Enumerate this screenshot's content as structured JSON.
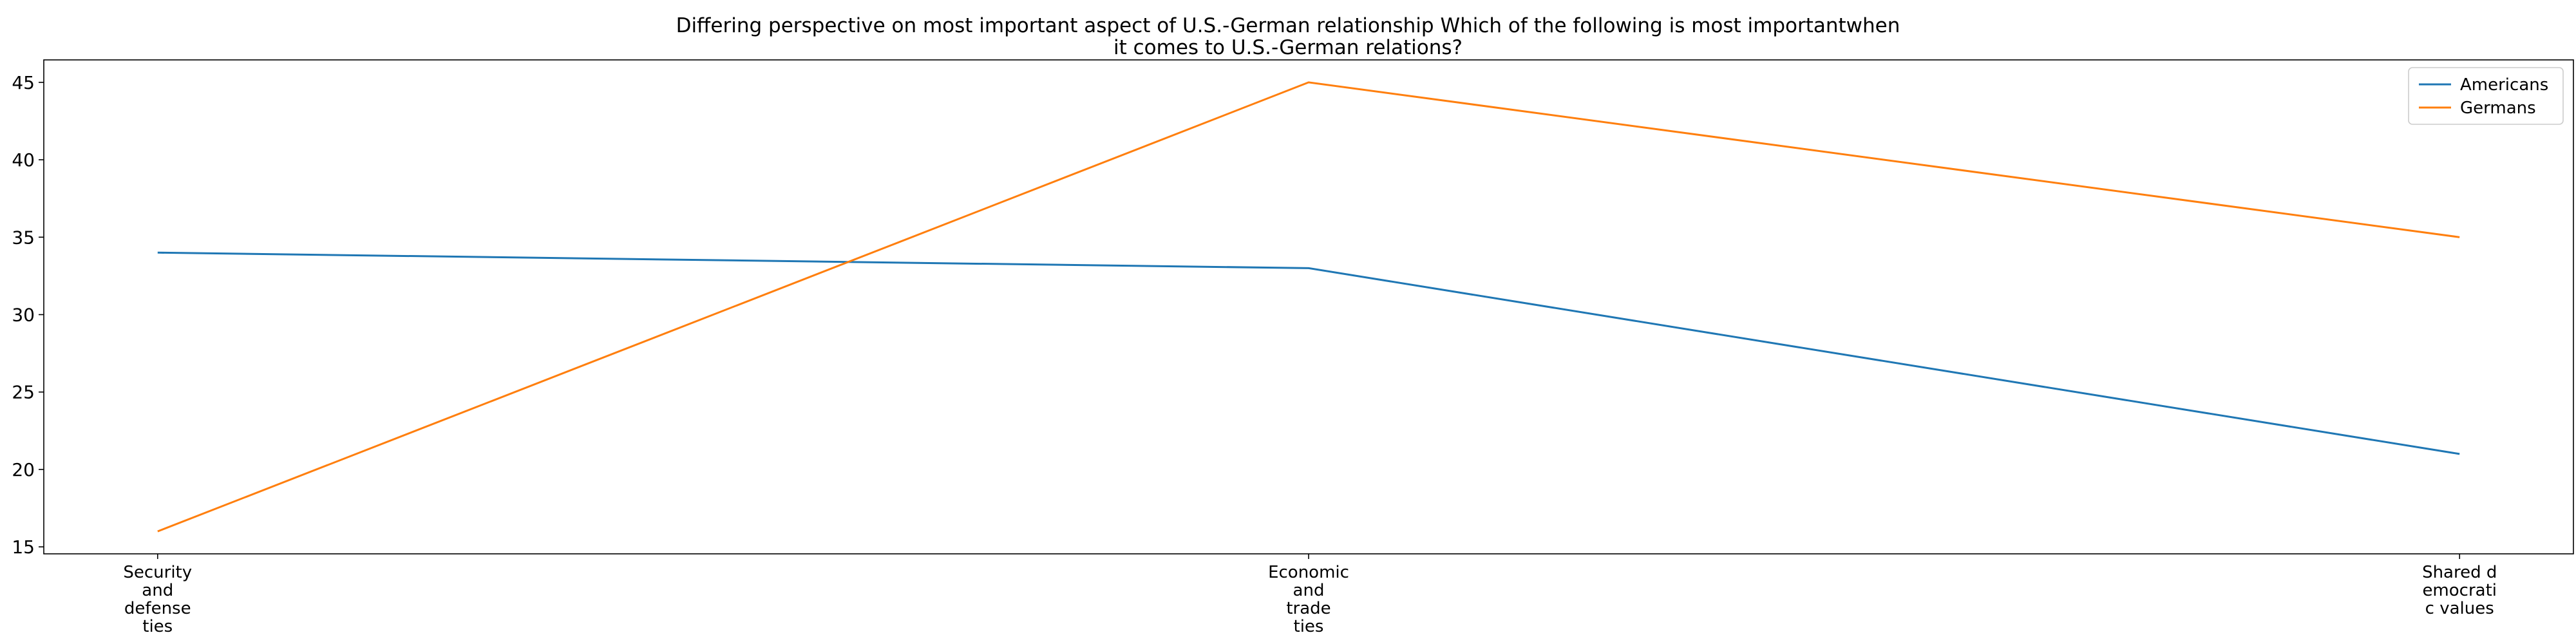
{
  "chart_data": {
    "type": "line",
    "title_lines": [
      "Differing perspective on most important aspect of U.S.-German relationship Which of the following is most importantwhen",
      "it comes to U.S.-German relations?"
    ],
    "xlabel": "",
    "ylabel": "",
    "categories": [
      [
        "Security",
        "and",
        "defense",
        "ties"
      ],
      [
        "Economic",
        "and",
        "trade",
        "ties"
      ],
      [
        "Shared d",
        "emocrati",
        "c values"
      ]
    ],
    "series": [
      {
        "name": "Americans",
        "color": "#1f77b4",
        "values": [
          34,
          33,
          21
        ]
      },
      {
        "name": "Germans",
        "color": "#ff7f0e",
        "values": [
          16,
          45,
          35
        ]
      }
    ],
    "yticks": [
      15,
      20,
      25,
      30,
      35,
      40,
      45
    ],
    "ylim": [
      14.55,
      46.45
    ],
    "grid": false,
    "legend_position": "top-right"
  }
}
